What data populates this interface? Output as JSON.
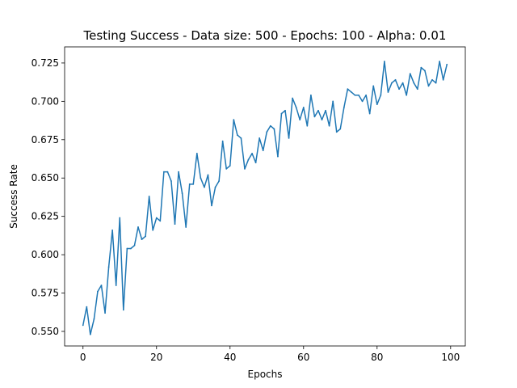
{
  "chart_data": {
    "type": "line",
    "title": "Testing Success - Data size: 500 - Epochs: 100 - Alpha: 0.01",
    "xlabel": "Epochs",
    "ylabel": "Success Rate",
    "xlim": [
      -5,
      104
    ],
    "ylim": [
      0.5405,
      0.7355
    ],
    "grid": false,
    "xticks": [
      0,
      20,
      40,
      60,
      80,
      100
    ],
    "yticks": [
      0.55,
      0.575,
      0.6,
      0.625,
      0.65,
      0.675,
      0.7,
      0.725
    ],
    "xtick_labels": [
      "0",
      "20",
      "40",
      "60",
      "80",
      "100"
    ],
    "ytick_labels": [
      "0.550",
      "0.575",
      "0.600",
      "0.625",
      "0.650",
      "0.675",
      "0.700",
      "0.725"
    ],
    "series": [
      {
        "color": "#1f77b4",
        "x": [
          0,
          1,
          2,
          3,
          4,
          5,
          6,
          7,
          8,
          9,
          10,
          11,
          12,
          13,
          14,
          15,
          16,
          17,
          18,
          19,
          20,
          21,
          22,
          23,
          24,
          25,
          26,
          27,
          28,
          29,
          30,
          31,
          32,
          33,
          34,
          35,
          36,
          37,
          38,
          39,
          40,
          41,
          42,
          43,
          44,
          45,
          46,
          47,
          48,
          49,
          50,
          51,
          52,
          53,
          54,
          55,
          56,
          57,
          58,
          59,
          60,
          61,
          62,
          63,
          64,
          65,
          66,
          67,
          68,
          69,
          70,
          71,
          72,
          73,
          74,
          75,
          76,
          77,
          78,
          79,
          80,
          81,
          82,
          83,
          84,
          85,
          86,
          87,
          88,
          89,
          90,
          91,
          92,
          93,
          94,
          95,
          96,
          97,
          98,
          99
        ],
        "values": [
          0.554,
          0.566,
          0.548,
          0.558,
          0.576,
          0.58,
          0.562,
          0.592,
          0.616,
          0.58,
          0.624,
          0.564,
          0.604,
          0.604,
          0.606,
          0.618,
          0.61,
          0.612,
          0.638,
          0.616,
          0.624,
          0.622,
          0.654,
          0.654,
          0.648,
          0.62,
          0.654,
          0.64,
          0.618,
          0.646,
          0.646,
          0.666,
          0.65,
          0.644,
          0.652,
          0.632,
          0.644,
          0.648,
          0.674,
          0.656,
          0.658,
          0.688,
          0.678,
          0.676,
          0.656,
          0.662,
          0.666,
          0.66,
          0.676,
          0.668,
          0.68,
          0.684,
          0.682,
          0.664,
          0.692,
          0.694,
          0.676,
          0.702,
          0.696,
          0.688,
          0.696,
          0.684,
          0.704,
          0.69,
          0.694,
          0.688,
          0.694,
          0.684,
          0.7,
          0.68,
          0.682,
          0.696,
          0.708,
          0.706,
          0.704,
          0.704,
          0.7,
          0.704,
          0.692,
          0.71,
          0.698,
          0.704,
          0.726,
          0.706,
          0.712,
          0.714,
          0.708,
          0.712,
          0.704,
          0.718,
          0.712,
          0.708,
          0.722,
          0.72,
          0.71,
          0.714,
          0.712,
          0.726,
          0.714,
          0.724
        ]
      }
    ]
  }
}
